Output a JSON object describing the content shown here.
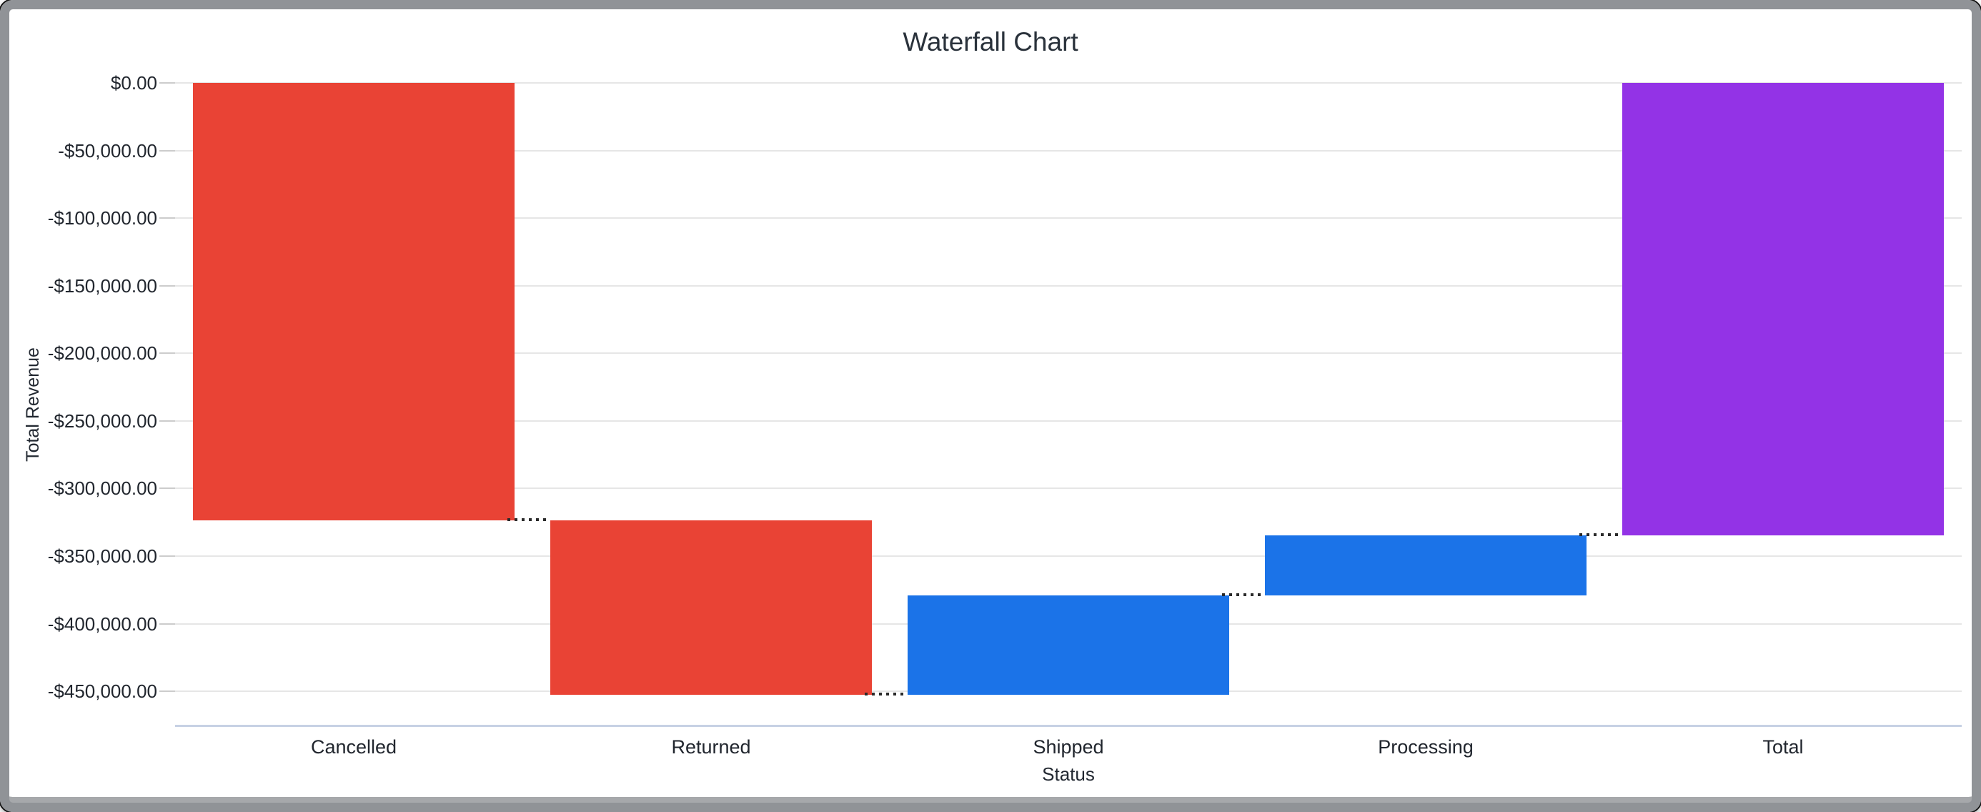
{
  "chart_data": {
    "type": "bar",
    "subtype": "waterfall",
    "title": "Waterfall Chart",
    "xlabel": "Status",
    "ylabel": "Total Revenue",
    "categories": [
      "Cancelled",
      "Returned",
      "Shipped",
      "Processing",
      "Total"
    ],
    "bars": [
      {
        "label": "Cancelled",
        "start": 0,
        "end": -323500,
        "delta": -323500,
        "role": "decrease"
      },
      {
        "label": "Returned",
        "start": -323500,
        "end": -452600,
        "delta": -129100,
        "role": "decrease"
      },
      {
        "label": "Shipped",
        "start": -452600,
        "end": -379000,
        "delta": 73600,
        "role": "increase"
      },
      {
        "label": "Processing",
        "start": -379000,
        "end": -334600,
        "delta": 44400,
        "role": "increase"
      },
      {
        "label": "Total",
        "start": 0,
        "end": -334600,
        "delta": -334600,
        "role": "total"
      }
    ],
    "y_ticks": [
      {
        "value": 0,
        "label": "$0.00"
      },
      {
        "value": -50000,
        "label": "-$50,000.00"
      },
      {
        "value": -100000,
        "label": "-$100,000.00"
      },
      {
        "value": -150000,
        "label": "-$150,000.00"
      },
      {
        "value": -200000,
        "label": "-$200,000.00"
      },
      {
        "value": -250000,
        "label": "-$250,000.00"
      },
      {
        "value": -300000,
        "label": "-$300,000.00"
      },
      {
        "value": -350000,
        "label": "-$350,000.00"
      },
      {
        "value": -400000,
        "label": "-$400,000.00"
      },
      {
        "value": -450000,
        "label": "-$450,000.00"
      }
    ],
    "y_axis_range": [
      -475300,
      0
    ],
    "grid": true,
    "legend": "none",
    "colors": {
      "decrease": "#e94335",
      "increase": "#1b73e8",
      "total": "#9333e6",
      "gridline": "#e6e6e6",
      "baseline": "#c7d1e4",
      "connector": "#2a2a2a",
      "text": "#21262e",
      "frame": "#909397"
    }
  }
}
